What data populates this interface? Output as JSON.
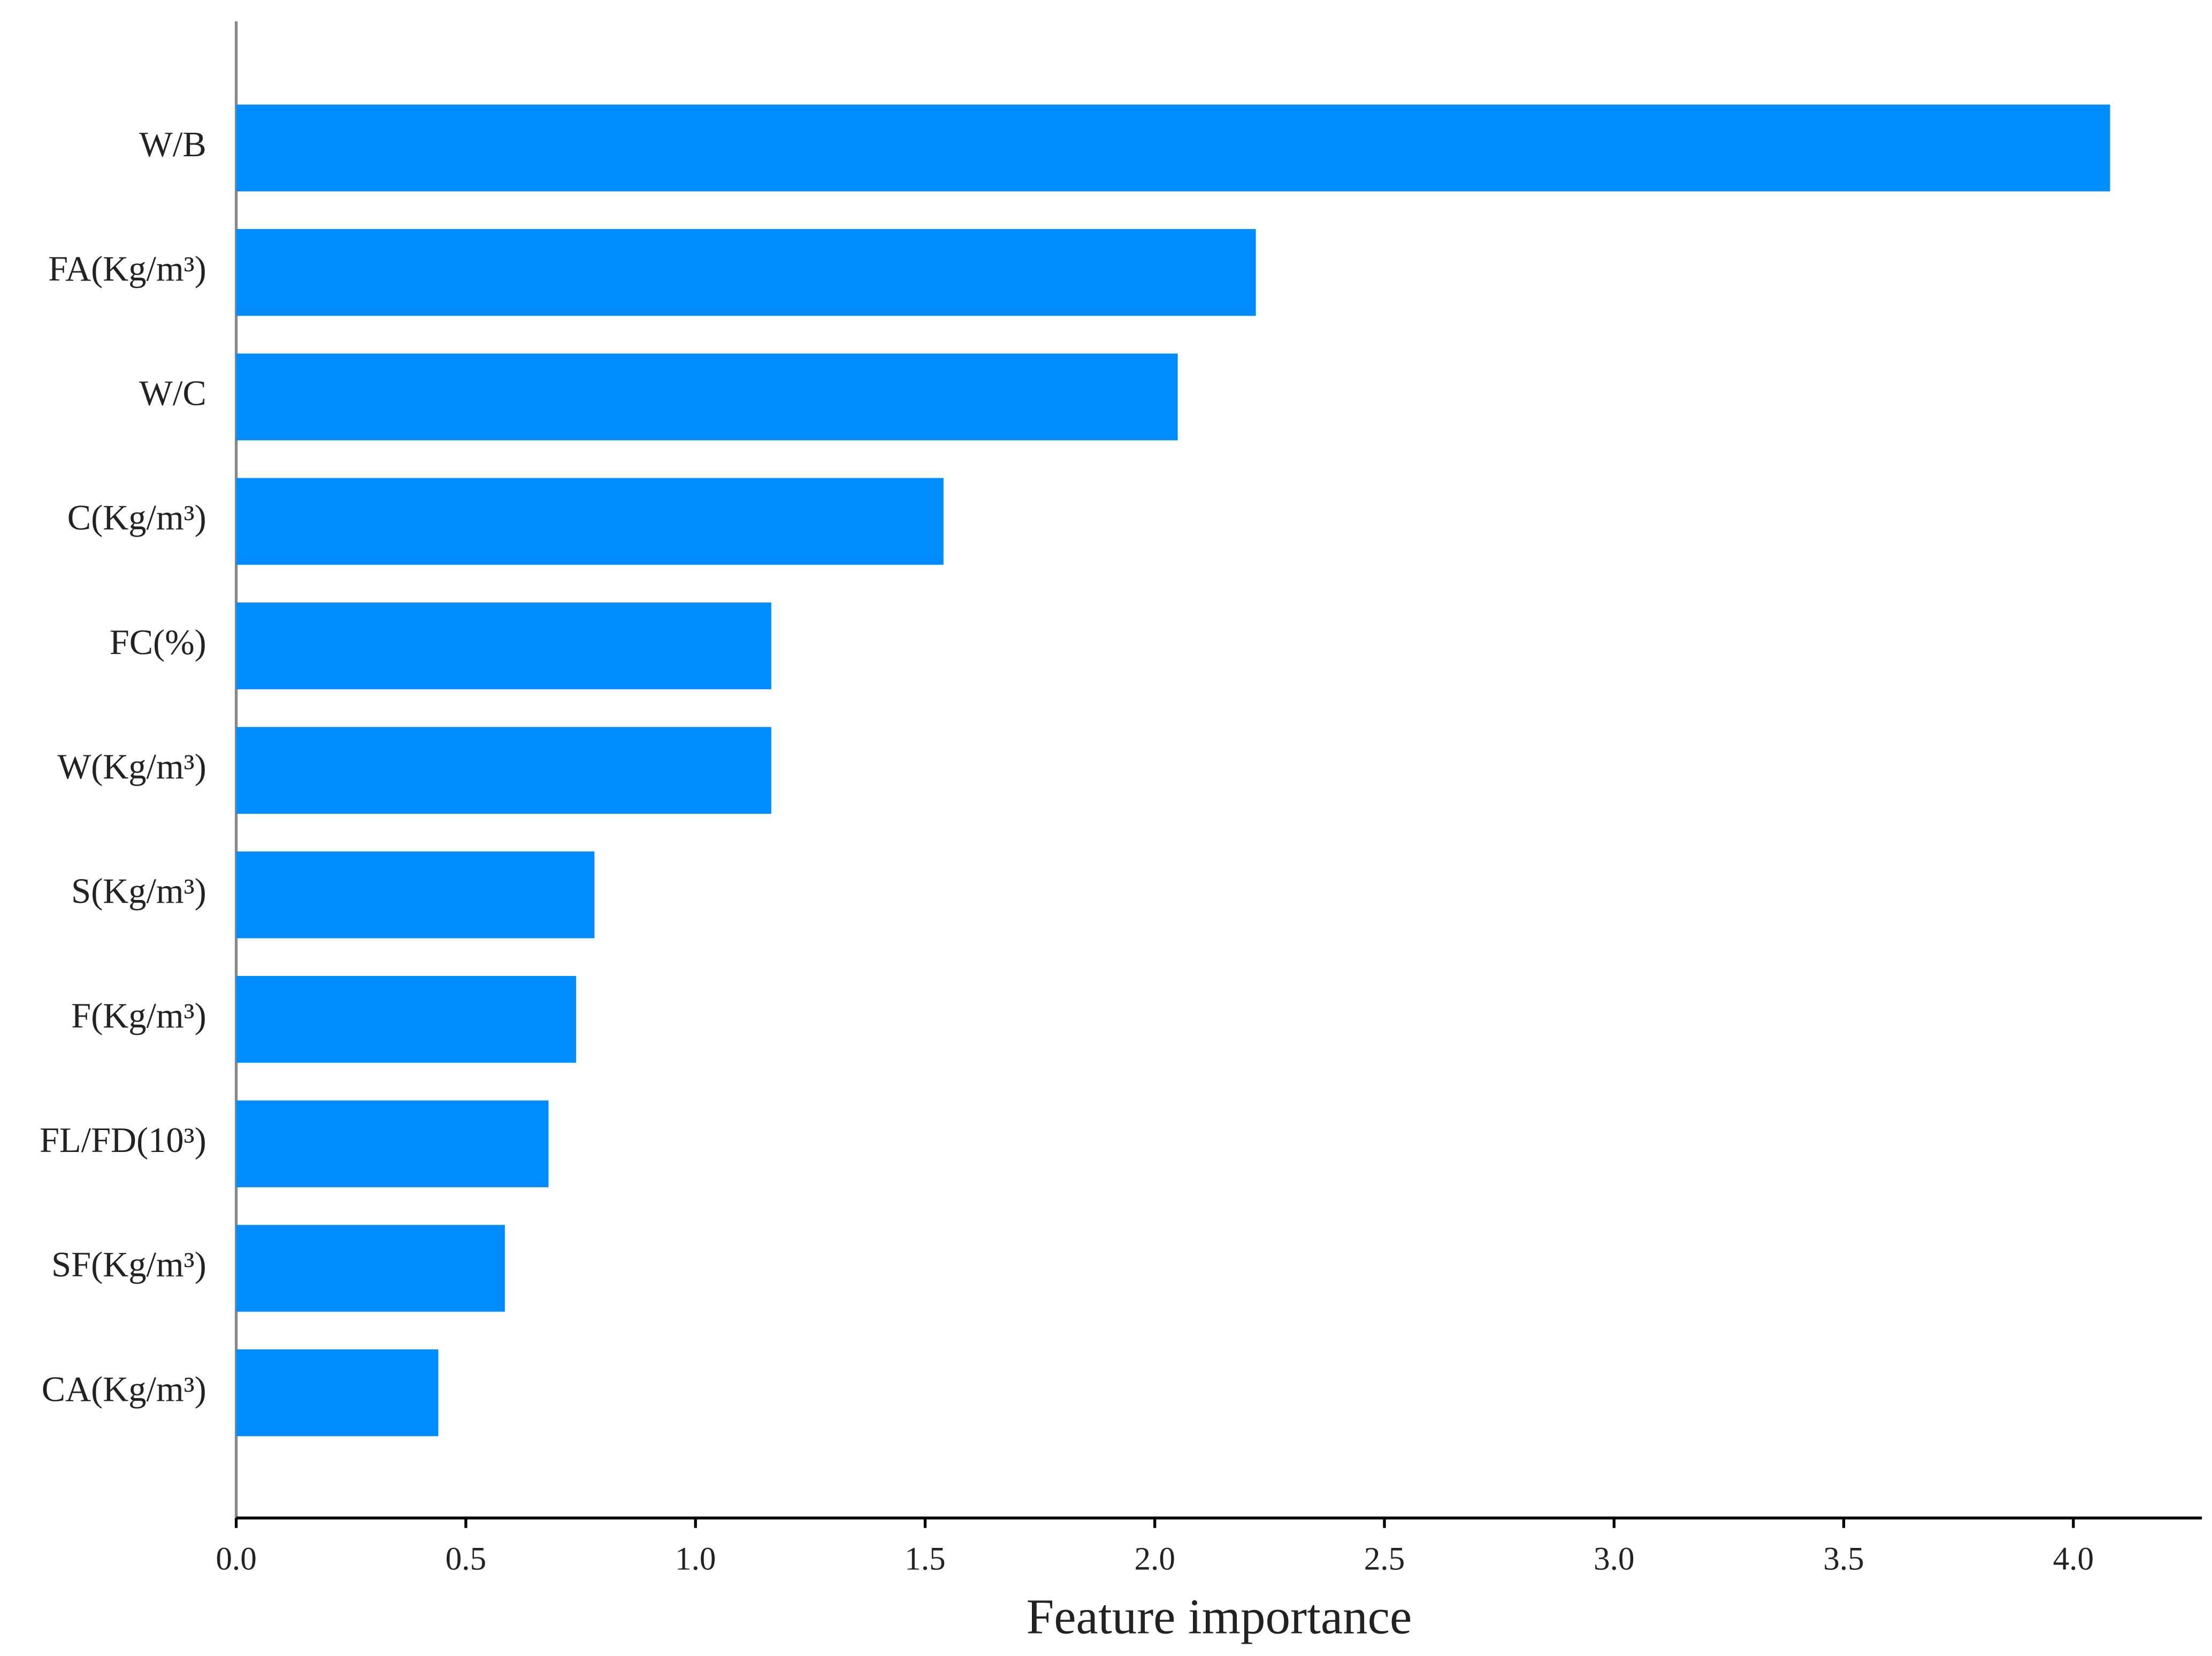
{
  "chart_data": {
    "type": "bar",
    "orientation": "horizontal",
    "x_label": "Feature importance",
    "categories": [
      "W/B",
      "FA(Kg/m³)",
      "W/C",
      "C(Kg/m³)",
      "FC(%)",
      "W(Kg/m³)",
      "S(Kg/m³)",
      "F(Kg/m³)",
      "FL/FD(10³)",
      "SF(Kg/m³)",
      "CA(Kg/m³)"
    ],
    "values": [
      4.08,
      2.22,
      2.05,
      1.54,
      1.165,
      1.165,
      0.78,
      0.74,
      0.68,
      0.585,
      0.44
    ],
    "color": "#008bfe",
    "xlim": [
      0,
      4.28
    ],
    "xticks": [
      {
        "value": 0,
        "label": "0.0"
      },
      0.5,
      {
        "value": 1,
        "label": "1.0"
      },
      1.5,
      {
        "value": 2,
        "label": "2.0"
      },
      2.5,
      {
        "value": 3,
        "label": "3.0"
      },
      3.5,
      {
        "value": 4,
        "label": "4.0"
      }
    ],
    "grid": false
  }
}
